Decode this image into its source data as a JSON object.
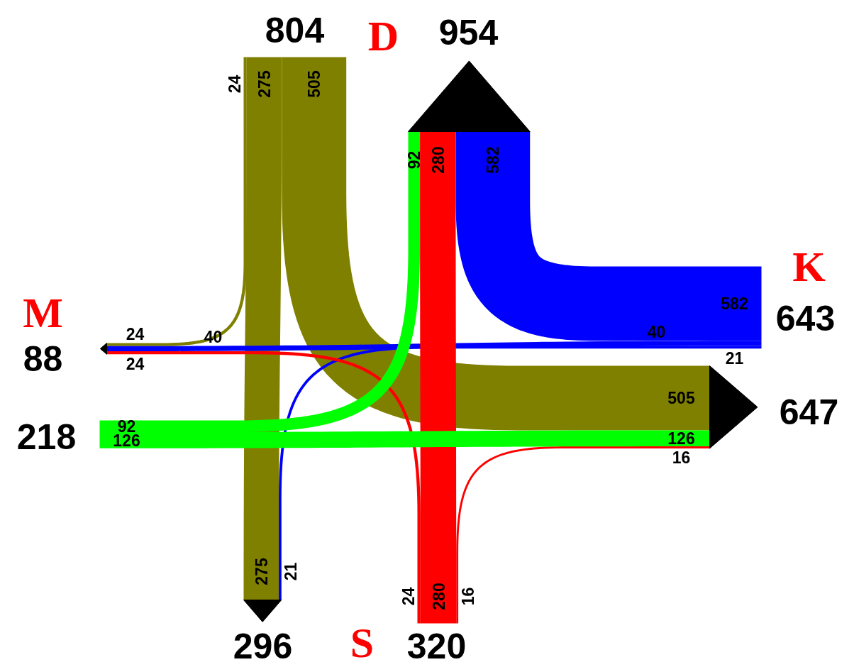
{
  "chart_data": {
    "type": "other",
    "categories": [
      "D",
      "K",
      "S",
      "M"
    ],
    "series": [
      {
        "color": "#808000",
        "values": [
          null,
          505,
          275,
          24
        ],
        "value_labels": [
          null,
          "505",
          "275",
          "24"
        ]
      },
      {
        "color": "#0000ff",
        "values": [
          582,
          null,
          21,
          40
        ],
        "value_labels": [
          "582",
          null,
          "21",
          "40"
        ]
      },
      {
        "color": "#ff0000",
        "values": [
          280,
          16,
          null,
          24
        ],
        "value_labels": [
          "280",
          "16",
          null,
          "24"
        ]
      },
      {
        "color": "#00ff00",
        "values": [
          92,
          126,
          null,
          null
        ],
        "value_labels": [
          "92",
          "126",
          null,
          null
        ]
      }
    ],
    "totals": [
      "804",
      "954",
      "643",
      "647",
      "320",
      "296",
      "218",
      "88"
    ],
    "annotations": [
      "505",
      "275",
      "24",
      "582",
      "21",
      "40",
      "280",
      "16",
      "24",
      "92",
      "126"
    ]
  }
}
